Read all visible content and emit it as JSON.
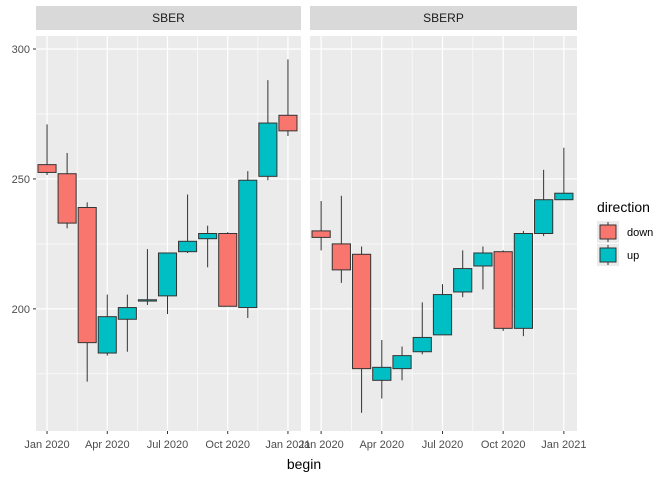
{
  "chart_data": {
    "type": "candlestick",
    "xlabel": "begin",
    "ylabel": "",
    "ylim": [
      153,
      305
    ],
    "y_ticks": [
      200,
      250,
      300
    ],
    "x_ticks": [
      {
        "label": "Jan 2020",
        "month": 0
      },
      {
        "label": "Apr 2020",
        "month": 3
      },
      {
        "label": "Jul 2020",
        "month": 6
      },
      {
        "label": "Oct 2020",
        "month": 9
      },
      {
        "label": "Jan 2021",
        "month": 12
      }
    ],
    "legend": {
      "title": "direction",
      "position": "right",
      "entries": [
        {
          "label": "down",
          "color": "#F8766D"
        },
        {
          "label": "up",
          "color": "#00BFC4"
        }
      ]
    },
    "panels": [
      {
        "title": "SBER",
        "candles": [
          {
            "month": 0,
            "open": 255.5,
            "close": 252.5,
            "high": 271.0,
            "low": 251.5
          },
          {
            "month": 1,
            "open": 252.0,
            "close": 233.0,
            "high": 260.0,
            "low": 231.0
          },
          {
            "month": 2,
            "open": 239.0,
            "close": 187.0,
            "high": 241.0,
            "low": 172.0
          },
          {
            "month": 3,
            "open": 183.0,
            "close": 197.0,
            "high": 205.5,
            "low": 182.0
          },
          {
            "month": 4,
            "open": 196.0,
            "close": 200.5,
            "high": 205.5,
            "low": 183.5
          },
          {
            "month": 5,
            "open": 203.0,
            "close": 203.5,
            "high": 223.0,
            "low": 201.5
          },
          {
            "month": 6,
            "open": 205.0,
            "close": 221.5,
            "high": 221.5,
            "low": 198.0
          },
          {
            "month": 7,
            "open": 222.0,
            "close": 226.0,
            "high": 244.0,
            "low": 221.5
          },
          {
            "month": 8,
            "open": 227.0,
            "close": 229.0,
            "high": 232.0,
            "low": 216.0
          },
          {
            "month": 9,
            "open": 229.0,
            "close": 201.0,
            "high": 229.5,
            "low": 201.0
          },
          {
            "month": 10,
            "open": 200.5,
            "close": 249.5,
            "high": 253.0,
            "low": 196.5
          },
          {
            "month": 11,
            "open": 251.0,
            "close": 271.5,
            "high": 288.0,
            "low": 249.5
          },
          {
            "month": 12,
            "open": 274.5,
            "close": 268.5,
            "high": 296.0,
            "low": 266.5
          }
        ]
      },
      {
        "title": "SBERP",
        "candles": [
          {
            "month": 0,
            "open": 230.0,
            "close": 227.5,
            "high": 241.5,
            "low": 222.5
          },
          {
            "month": 1,
            "open": 225.0,
            "close": 215.0,
            "high": 243.5,
            "low": 210.0
          },
          {
            "month": 2,
            "open": 221.0,
            "close": 177.0,
            "high": 224.0,
            "low": 160.0
          },
          {
            "month": 3,
            "open": 172.5,
            "close": 177.5,
            "high": 188.0,
            "low": 165.5
          },
          {
            "month": 4,
            "open": 177.0,
            "close": 182.0,
            "high": 185.5,
            "low": 172.5
          },
          {
            "month": 5,
            "open": 183.5,
            "close": 189.0,
            "high": 202.5,
            "low": 182.5
          },
          {
            "month": 6,
            "open": 190.0,
            "close": 205.5,
            "high": 209.5,
            "low": 190.0
          },
          {
            "month": 7,
            "open": 206.5,
            "close": 215.5,
            "high": 222.5,
            "low": 204.5
          },
          {
            "month": 8,
            "open": 216.5,
            "close": 221.5,
            "high": 224.0,
            "low": 207.5
          },
          {
            "month": 9,
            "open": 222.0,
            "close": 192.5,
            "high": 222.5,
            "low": 191.5
          },
          {
            "month": 10,
            "open": 192.5,
            "close": 229.0,
            "high": 230.0,
            "low": 189.5
          },
          {
            "month": 11,
            "open": 229.0,
            "close": 242.0,
            "high": 253.5,
            "low": 228.0
          },
          {
            "month": 12,
            "open": 242.0,
            "close": 244.5,
            "high": 262.0,
            "low": 242.0
          }
        ]
      }
    ],
    "colors": {
      "down": "#F8766D",
      "up": "#00BFC4",
      "panel_bg": "#EBEBEB",
      "strip_bg": "#D9D9D9",
      "grid": "#FFFFFF",
      "axis_text": "#4D4D4D"
    }
  }
}
